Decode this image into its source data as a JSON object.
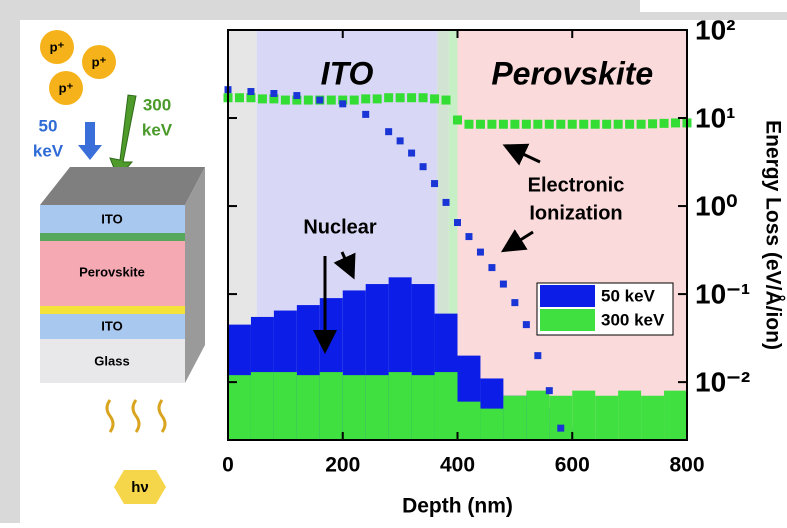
{
  "schematic": {
    "particles": [
      "p⁺",
      "p⁺",
      "p⁺"
    ],
    "beam_50": [
      "50",
      "keV"
    ],
    "beam_300": [
      "300",
      "keV"
    ],
    "layers": [
      "ITO",
      "Perovskite",
      "ITO",
      "Glass"
    ],
    "light": "hν"
  },
  "chart_data": {
    "type": "histogram",
    "xlabel": "Depth (nm)",
    "ylabel": "Energy Loss (eV/Å/ion)",
    "xlim": [
      0,
      800
    ],
    "xticks": [
      0,
      200,
      400,
      600,
      800
    ],
    "ylim": [
      0.0022,
      100
    ],
    "log_y": true,
    "yticks": [
      {
        "value": 100,
        "label": "10²"
      },
      {
        "value": 10,
        "label": "10¹"
      },
      {
        "value": 1,
        "label": "10⁰"
      },
      {
        "value": 0.1,
        "label": "10⁻¹"
      },
      {
        "value": 0.01,
        "label": "10⁻²"
      }
    ],
    "regions": [
      {
        "from": 0,
        "to": 50,
        "color": "#e6e6e6"
      },
      {
        "label": "ITO",
        "from": 50,
        "to": 365,
        "color": "#d8d8f6"
      },
      {
        "from": 365,
        "to": 385,
        "color": "#d3e3d3"
      },
      {
        "from": 385,
        "to": 400,
        "color": "#c6efc6"
      },
      {
        "label": "Perovskite",
        "from": 400,
        "to": 800,
        "color": "#fadada"
      }
    ],
    "bins": [
      0,
      40,
      80,
      120,
      160,
      200,
      240,
      280,
      320,
      360,
      400,
      440,
      480,
      520,
      560,
      600,
      640,
      680,
      720,
      760,
      800
    ],
    "series": [
      {
        "name": "50 keV",
        "color": "#0b1de6",
        "values": [
          0.045,
          0.055,
          0.065,
          0.075,
          0.09,
          0.11,
          0.13,
          0.155,
          0.13,
          0.06,
          0.02,
          0.011,
          0.007,
          0.005,
          0.003,
          null,
          null,
          null,
          null,
          null
        ]
      },
      {
        "name": "300 keV",
        "color": "#3fe03f",
        "values": [
          0.012,
          0.013,
          0.013,
          0.012,
          0.013,
          0.012,
          0.012,
          0.013,
          0.012,
          0.013,
          0.006,
          0.005,
          0.007,
          0.008,
          0.007,
          0.008,
          0.007,
          0.008,
          0.007,
          0.008
        ]
      }
    ],
    "electronic_series": [
      {
        "color": "#33dd33",
        "x": [
          0,
          20,
          40,
          60,
          80,
          100,
          120,
          140,
          160,
          180,
          200,
          220,
          240,
          260,
          280,
          300,
          320,
          340,
          360,
          380,
          400,
          420,
          440,
          460,
          480,
          500,
          520,
          540,
          560,
          580,
          600,
          620,
          640,
          660,
          680,
          700,
          720,
          740,
          760,
          780,
          800
        ],
        "values": [
          17,
          17,
          17,
          16.5,
          16.5,
          16,
          16,
          16,
          16,
          16,
          16,
          16,
          16.5,
          16.5,
          17,
          17,
          17,
          17,
          16.5,
          16,
          9.5,
          8.5,
          8.5,
          8.5,
          8.5,
          8.5,
          8.5,
          8.5,
          8.5,
          8.5,
          8.5,
          8.5,
          8.5,
          8.5,
          8.5,
          8.5,
          8.5,
          8.6,
          8.7,
          8.8,
          8.8
        ]
      },
      {
        "color": "#1a35d6",
        "x": [
          0,
          40,
          80,
          120,
          160,
          200,
          240,
          280,
          300,
          320,
          340,
          360,
          380,
          400,
          420,
          440,
          460,
          480,
          500,
          520,
          540,
          560,
          580
        ],
        "values": [
          21,
          20,
          19,
          18,
          16,
          14.5,
          11,
          7,
          5.5,
          4,
          2.8,
          1.8,
          1.1,
          0.65,
          0.45,
          0.3,
          0.2,
          0.13,
          0.08,
          0.045,
          0.02,
          0.008,
          0.003
        ]
      }
    ],
    "annotations": [
      "Nuclear",
      "Electronic",
      "Ionization"
    ],
    "legend": "right"
  }
}
